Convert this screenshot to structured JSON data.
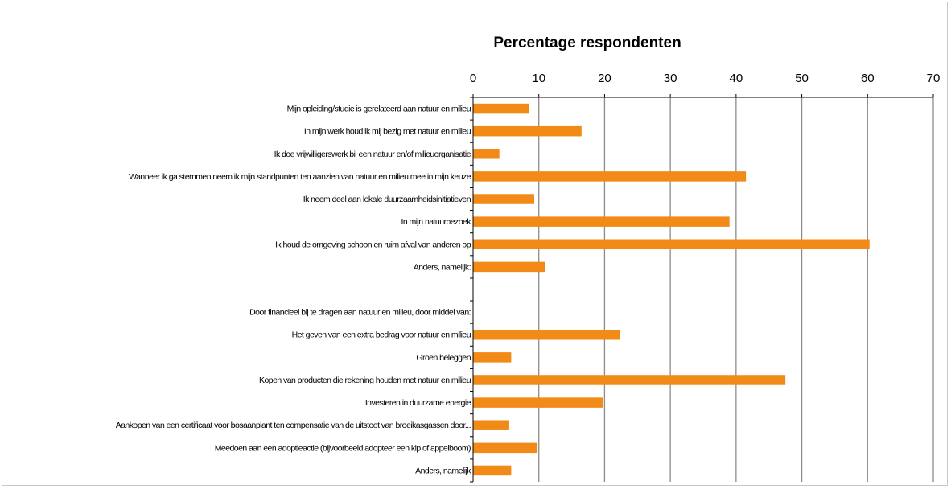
{
  "chart_data": {
    "type": "bar",
    "orientation": "horizontal",
    "title": "Percentage respondenten",
    "xlabel": "",
    "ylabel": "",
    "xlim": [
      0,
      70
    ],
    "x_ticks": [
      0,
      10,
      20,
      30,
      40,
      50,
      60,
      70
    ],
    "x_axis_position": "top",
    "grid": true,
    "bar_color": "#F28A18",
    "categories": [
      "Mijn opleiding/studie is gerelateerd aan natuur en milieu",
      "In mijn werk houd ik mij bezig met natuur en milieu",
      "Ik doe vrijwilligerswerk bij een natuur en/of milieuorganisatie",
      "Wanneer ik ga stemmen neem ik mijn standpunten ten aanzien van natuur en milieu mee in mijn keuze",
      "Ik neem deel aan lokale duurzaamheidsinitiatieven",
      "In mijn natuurbezoek",
      "Ik houd de omgeving schoon en ruim afval van anderen op",
      "Anders, namelijk:",
      "",
      "Door financieel bij te dragen aan natuur en milieu, door middel van:",
      "Het geven van een extra bedrag voor natuur en milieu",
      "Groen beleggen",
      "Kopen van producten die rekening houden met natuur en milieu",
      "Investeren in duurzame energie",
      "Aankopen van een certificaat voor bosaanplant ten compensatie van de uitstoot van broeikasgassen door...",
      "Meedoen aan een adoptieactie (bijvoorbeeld adopteer een kip of appelboom)",
      "Anders, namelijk"
    ],
    "values": [
      8.5,
      16.5,
      4.0,
      41.5,
      9.3,
      39.0,
      60.3,
      11.0,
      null,
      null,
      22.3,
      5.8,
      47.5,
      19.8,
      5.5,
      9.8,
      5.8
    ]
  }
}
